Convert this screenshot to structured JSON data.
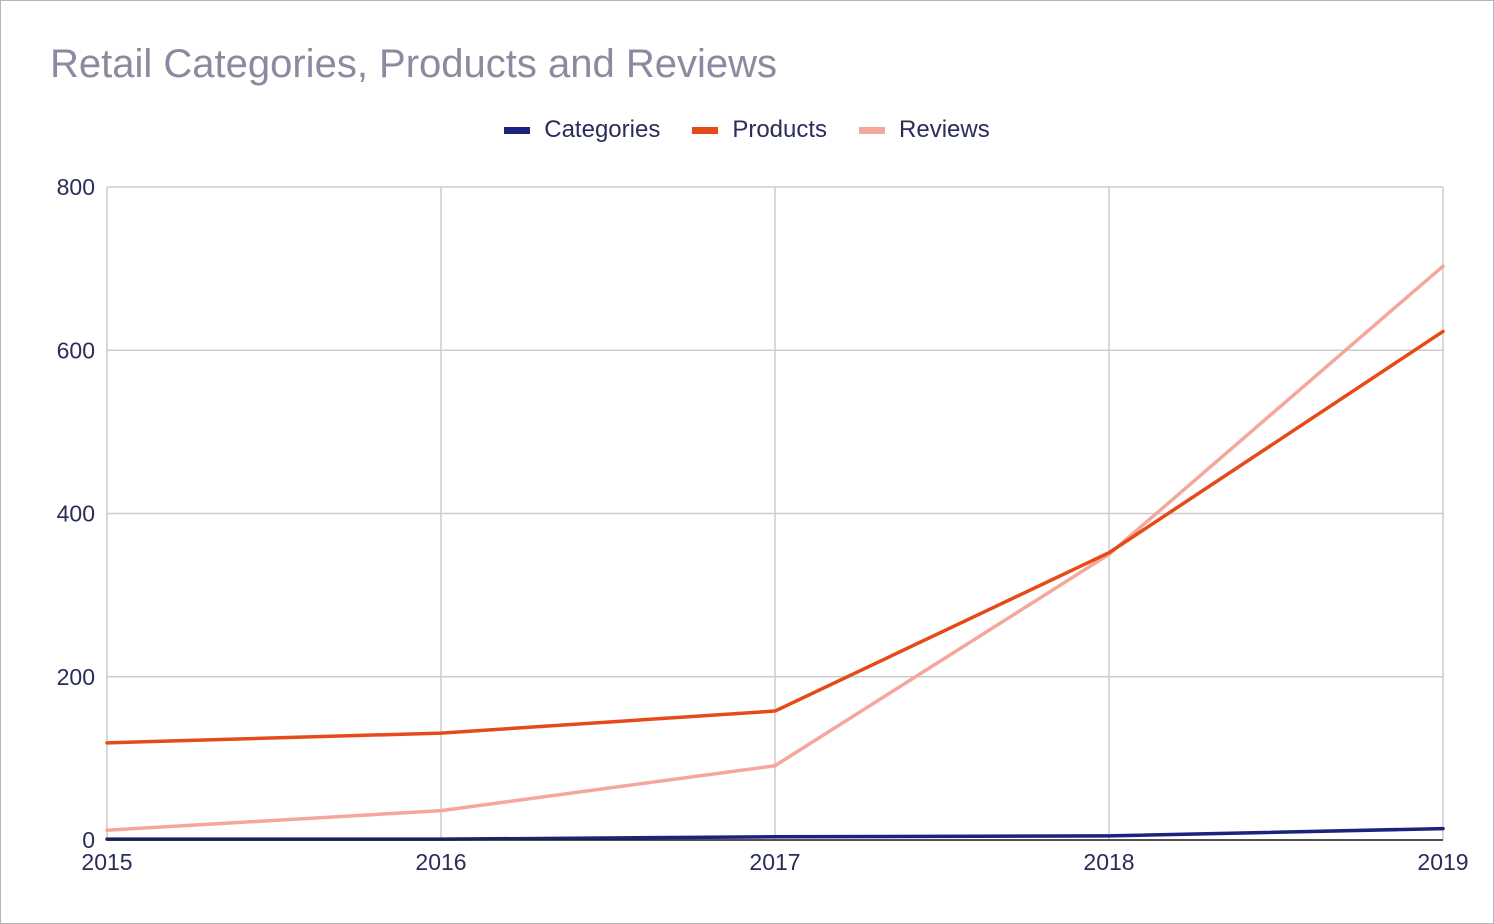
{
  "chart_data": {
    "type": "line",
    "title": "Retail Categories, Products and Reviews",
    "xlabel": "",
    "ylabel": "",
    "x": [
      "2015",
      "2016",
      "2017",
      "2018",
      "2019"
    ],
    "ylim": [
      0,
      800
    ],
    "yticks": [
      "0",
      "200",
      "400",
      "600",
      "800"
    ],
    "grid": true,
    "legend_position": "top-center",
    "series": [
      {
        "name": "Categories",
        "color": "#1a237e",
        "values": [
          1,
          1,
          4,
          5,
          14
        ]
      },
      {
        "name": "Products",
        "color": "#e64a19",
        "values": [
          119,
          131,
          158,
          352,
          623
        ]
      },
      {
        "name": "Reviews",
        "color": "#f4a79a",
        "values": [
          12,
          36,
          91,
          350,
          703
        ]
      }
    ]
  }
}
